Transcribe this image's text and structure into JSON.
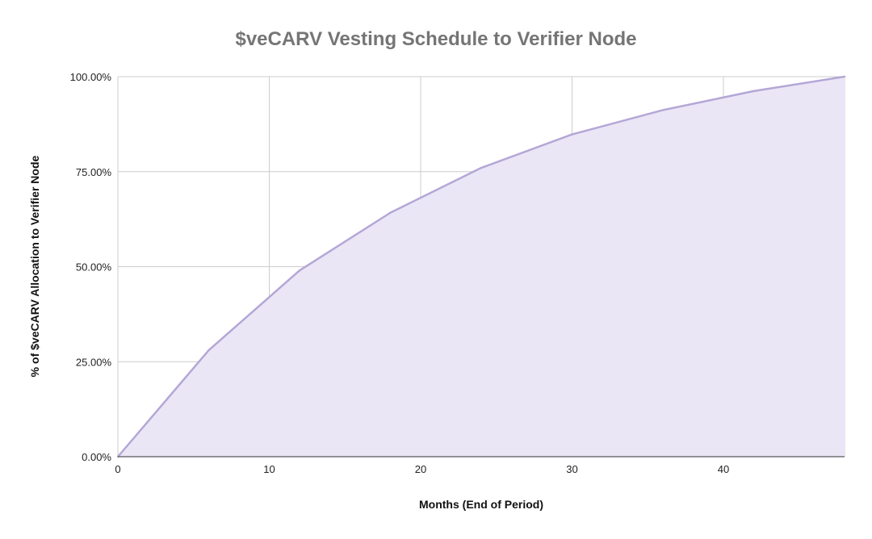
{
  "chart_data": {
    "type": "area",
    "title": "$veCARV Vesting Schedule to Verifier Node",
    "xlabel": "Months (End of Period)",
    "ylabel": "% of $veCARV Allocation to Verifier Node",
    "xlim": [
      0,
      48
    ],
    "ylim": [
      0,
      100
    ],
    "x_ticks": [
      0,
      10,
      20,
      30,
      40
    ],
    "x_tick_labels": [
      "0",
      "10",
      "20",
      "30",
      "40"
    ],
    "y_ticks": [
      0,
      25,
      50,
      75,
      100
    ],
    "y_tick_labels": [
      "0.00%",
      "25.00%",
      "50.00%",
      "75.00%",
      "100.00%"
    ],
    "grid": true,
    "legend": "none",
    "series": [
      {
        "x": [
          0,
          6,
          12,
          18,
          24,
          30,
          36,
          42,
          48
        ],
        "values": [
          0,
          28,
          49,
          64.2,
          76,
          84.8,
          91.2,
          96.2,
          100
        ],
        "line_color": "#b4a7d6",
        "fill_color": "#ebe6f6"
      }
    ]
  }
}
